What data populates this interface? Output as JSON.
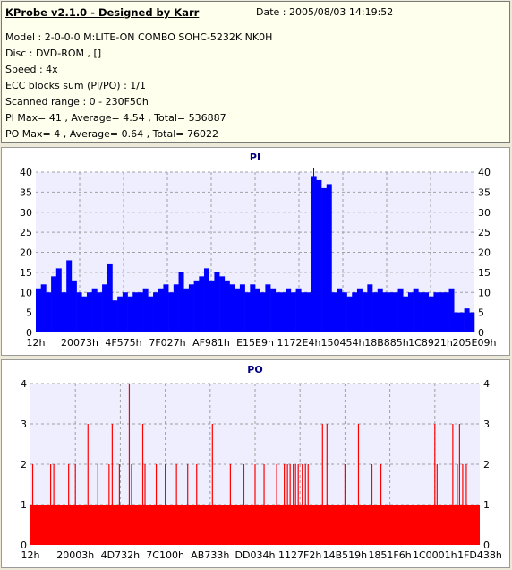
{
  "header": {
    "app_title": "KProbe v2.1.0 - Designed by Karr",
    "date": "Date : 2005/08/03 14:19:52",
    "lines": [
      "Model : 2-0-0-0 M:LITE-ON COMBO SOHC-5232K NK0H",
      "Disc : DVD-ROM ,  []",
      "Speed : 4x",
      "ECC blocks sum (PI/PO) : 1/1",
      "Scanned range : 0 - 230F50h",
      "PI Max= 41 , Average= 4.54 , Total= 536887",
      "PO Max= 4 , Average= 0.64 , Total= 76022"
    ]
  },
  "colors": {
    "pi_bar": "#0000ff",
    "po_bar": "#ff0000",
    "plot_bg": "#eeeeff",
    "grid": "#a0a0a0",
    "title": "#000080"
  },
  "chart_data": [
    {
      "type": "bar",
      "title": "PI",
      "ylim": [
        0,
        40
      ],
      "yticks": [
        0,
        5,
        10,
        15,
        20,
        25,
        30,
        35,
        40
      ],
      "xticks": [
        "12h",
        "20073h",
        "4F575h",
        "7F027h",
        "AF981h",
        "E15E9h",
        "1172E4h",
        "150454h",
        "18B885h",
        "1C8921h",
        "205E09h"
      ],
      "grid": true,
      "series": [
        {
          "values": [
            11,
            12,
            10,
            14,
            16,
            10,
            18,
            13,
            10,
            9,
            10,
            11,
            10,
            12,
            17,
            8,
            9,
            10,
            9,
            10,
            10,
            11,
            9,
            10,
            11,
            12,
            10,
            12,
            15,
            11,
            12,
            13,
            14,
            16,
            13,
            15,
            14,
            13,
            12,
            11,
            12,
            10,
            12,
            11,
            10,
            12,
            11,
            10,
            10,
            11,
            10,
            11,
            10,
            10,
            39,
            38,
            36,
            37,
            10,
            11,
            10,
            9,
            10,
            11,
            10,
            12,
            10,
            11,
            10,
            10,
            10,
            11,
            9,
            10,
            11,
            10,
            10,
            9,
            10,
            10,
            10,
            11,
            5,
            5,
            6,
            5
          ],
          "peaks": [
            {
              "index": 54,
              "value": 41
            }
          ]
        }
      ]
    },
    {
      "type": "bar",
      "title": "PO",
      "ylim": [
        0,
        4
      ],
      "yticks": [
        0,
        1,
        2,
        3,
        4
      ],
      "xticks": [
        "12h",
        "20003h",
        "4D732h",
        "7C100h",
        "AB733h",
        "DD034h",
        "1127F2h",
        "14B519h",
        "1851F6h",
        "1C0001h",
        "1FD438h"
      ],
      "grid": true,
      "baseline": 1,
      "spikes": [
        {
          "pos": 0.005,
          "value": 2
        },
        {
          "pos": 0.045,
          "value": 2
        },
        {
          "pos": 0.052,
          "value": 2
        },
        {
          "pos": 0.085,
          "value": 2
        },
        {
          "pos": 0.1,
          "value": 2
        },
        {
          "pos": 0.128,
          "value": 3
        },
        {
          "pos": 0.15,
          "value": 2
        },
        {
          "pos": 0.175,
          "value": 2
        },
        {
          "pos": 0.182,
          "value": 3
        },
        {
          "pos": 0.198,
          "value": 2
        },
        {
          "pos": 0.22,
          "value": 4
        },
        {
          "pos": 0.225,
          "value": 2
        },
        {
          "pos": 0.25,
          "value": 3
        },
        {
          "pos": 0.255,
          "value": 2
        },
        {
          "pos": 0.28,
          "value": 2
        },
        {
          "pos": 0.3,
          "value": 2
        },
        {
          "pos": 0.325,
          "value": 2
        },
        {
          "pos": 0.35,
          "value": 2
        },
        {
          "pos": 0.37,
          "value": 2
        },
        {
          "pos": 0.405,
          "value": 3
        },
        {
          "pos": 0.445,
          "value": 2
        },
        {
          "pos": 0.475,
          "value": 2
        },
        {
          "pos": 0.5,
          "value": 2
        },
        {
          "pos": 0.52,
          "value": 2
        },
        {
          "pos": 0.548,
          "value": 2
        },
        {
          "pos": 0.565,
          "value": 2
        },
        {
          "pos": 0.572,
          "value": 2
        },
        {
          "pos": 0.578,
          "value": 2
        },
        {
          "pos": 0.585,
          "value": 2
        },
        {
          "pos": 0.59,
          "value": 2
        },
        {
          "pos": 0.596,
          "value": 2
        },
        {
          "pos": 0.605,
          "value": 2
        },
        {
          "pos": 0.612,
          "value": 2
        },
        {
          "pos": 0.618,
          "value": 2
        },
        {
          "pos": 0.65,
          "value": 3
        },
        {
          "pos": 0.66,
          "value": 3
        },
        {
          "pos": 0.7,
          "value": 2
        },
        {
          "pos": 0.73,
          "value": 3
        },
        {
          "pos": 0.76,
          "value": 2
        },
        {
          "pos": 0.78,
          "value": 2
        },
        {
          "pos": 0.9,
          "value": 3
        },
        {
          "pos": 0.905,
          "value": 2
        },
        {
          "pos": 0.94,
          "value": 3
        },
        {
          "pos": 0.95,
          "value": 2
        },
        {
          "pos": 0.955,
          "value": 3
        },
        {
          "pos": 0.962,
          "value": 2
        },
        {
          "pos": 0.97,
          "value": 2
        }
      ]
    }
  ]
}
